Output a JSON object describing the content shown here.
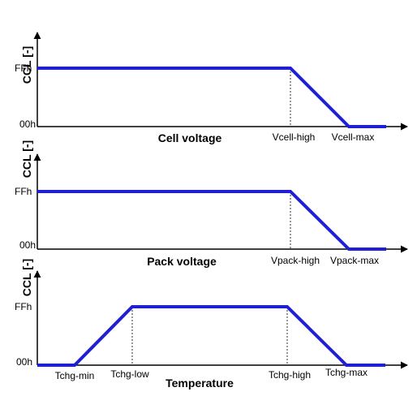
{
  "colors": {
    "curve": "#1f1fd6",
    "axis": "#000000",
    "guide": "#000000"
  },
  "panels": [
    {
      "y_axis_label": "CCL [-]",
      "y_ticks": {
        "high": "FFh",
        "low": "00h"
      },
      "x_title": "Cell voltage",
      "x_ticks": [
        "Vcell-high",
        "Vcell-max"
      ],
      "curve_levels": [
        "FFh",
        "FFh",
        "00h",
        "00h"
      ]
    },
    {
      "y_axis_label": "CCL [-]",
      "y_ticks": {
        "high": "FFh",
        "low": "00h"
      },
      "x_title": "Pack voltage",
      "x_ticks": [
        "Vpack-high",
        "Vpack-max"
      ],
      "curve_levels": [
        "FFh",
        "FFh",
        "00h",
        "00h"
      ]
    },
    {
      "y_axis_label": "CCL [-]",
      "y_ticks": {
        "high": "FFh",
        "low": "00h"
      },
      "x_title": "Temperature",
      "x_ticks": [
        "Tchg-min",
        "Tchg-low",
        "Tchg-high",
        "Tchg-max"
      ],
      "curve_levels": [
        "00h",
        "00h",
        "FFh",
        "FFh",
        "00h",
        "00h"
      ]
    }
  ]
}
